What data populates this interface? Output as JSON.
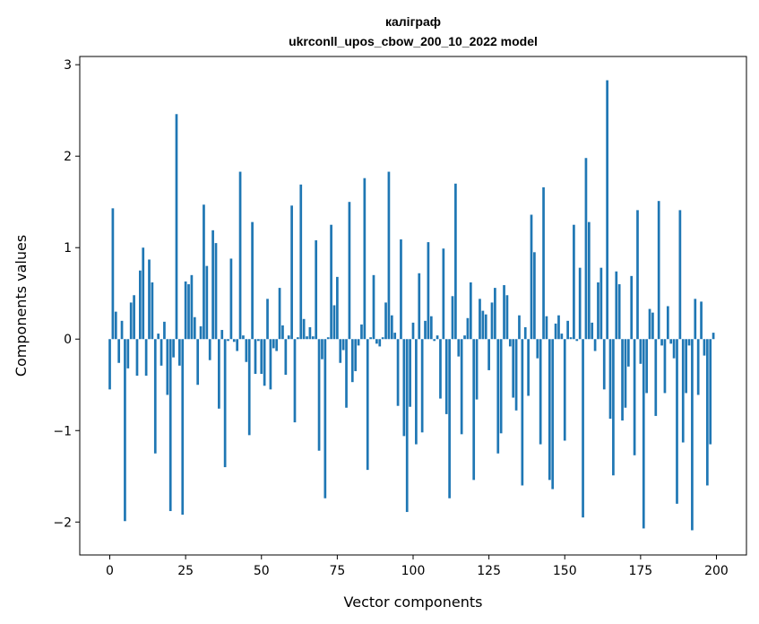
{
  "chart_data": {
    "type": "bar",
    "title": [
      "калiграф",
      "ukrconll_upos_cbow_200_10_2022 model"
    ],
    "xlabel": "Vector components",
    "ylabel": "Components values",
    "xlim": [
      -9.9,
      209.9
    ],
    "ylim": [
      -2.36,
      3.09
    ],
    "xticks": [
      0,
      25,
      50,
      75,
      100,
      125,
      150,
      175,
      200
    ],
    "yticks": [
      -2,
      -1,
      0,
      1,
      2,
      3
    ],
    "grid": false,
    "color": "#1f77b4",
    "values": [
      -0.55,
      1.43,
      0.3,
      -0.26,
      0.2,
      -1.99,
      -0.32,
      0.4,
      0.48,
      -0.4,
      0.75,
      1.0,
      -0.4,
      0.87,
      0.62,
      -1.25,
      0.06,
      -0.29,
      0.19,
      -0.61,
      -1.88,
      -0.2,
      2.46,
      -0.29,
      -1.92,
      0.63,
      0.6,
      0.7,
      0.24,
      -0.5,
      0.14,
      1.47,
      0.8,
      -0.23,
      1.19,
      1.05,
      -0.76,
      0.1,
      -1.4,
      -0.02,
      0.88,
      -0.03,
      -0.13,
      1.83,
      0.04,
      -0.25,
      -1.05,
      1.28,
      -0.38,
      -0.02,
      -0.38,
      -0.51,
      0.44,
      -0.55,
      -0.1,
      -0.13,
      0.56,
      0.15,
      -0.39,
      0.04,
      1.46,
      -0.91,
      0.02,
      1.69,
      0.22,
      0.03,
      0.13,
      0.03,
      1.08,
      -1.22,
      -0.22,
      -1.74,
      0.02,
      1.25,
      0.37,
      0.68,
      -0.26,
      -0.12,
      -0.75,
      1.5,
      -0.47,
      -0.35,
      -0.07,
      0.16,
      1.76,
      -1.43,
      0.02,
      0.7,
      -0.05,
      -0.08,
      0.02,
      0.4,
      1.83,
      0.26,
      0.07,
      -0.73,
      1.09,
      -1.06,
      -1.89,
      -0.74,
      0.18,
      -1.15,
      0.72,
      -1.02,
      0.2,
      1.06,
      0.25,
      -0.02,
      0.04,
      -0.65,
      0.99,
      -0.82,
      -1.74,
      0.47,
      1.7,
      -0.19,
      -1.04,
      0.04,
      0.23,
      0.62,
      -1.54,
      -0.66,
      0.44,
      0.31,
      0.27,
      -0.34,
      0.4,
      0.56,
      -1.25,
      -1.03,
      0.59,
      0.48,
      -0.08,
      -0.64,
      -0.78,
      0.26,
      -1.6,
      0.13,
      -0.62,
      1.36,
      0.95,
      -0.21,
      -1.15,
      1.66,
      0.25,
      -1.54,
      -1.64,
      0.17,
      0.26,
      0.06,
      -1.11,
      0.2,
      0.02,
      1.25,
      -0.02,
      0.78,
      -1.95,
      1.98,
      1.28,
      0.18,
      -0.13,
      0.62,
      0.78,
      -0.55,
      2.83,
      -0.87,
      -1.49,
      0.74,
      0.6,
      -0.89,
      -0.75,
      -0.3,
      0.69,
      -1.27,
      1.41,
      -0.27,
      -2.07,
      -0.59,
      0.33,
      0.29,
      -0.84,
      1.51,
      -0.07,
      -0.59,
      0.36,
      -0.05,
      -0.21,
      -1.8,
      1.41,
      -1.13,
      -0.59,
      -0.07,
      -2.09,
      0.44,
      -0.61,
      0.41,
      -0.18,
      -1.6,
      -1.15,
      0.07
    ]
  }
}
